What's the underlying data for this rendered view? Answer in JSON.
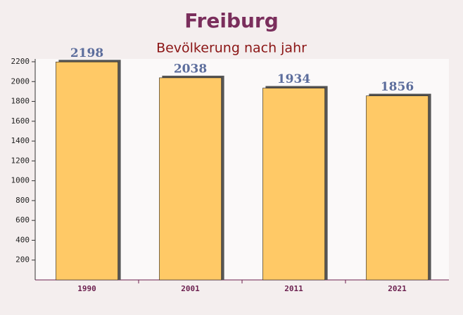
{
  "chart_data": {
    "type": "bar",
    "title": "Freiburg",
    "subtitle": "Bevölkerung nach jahr",
    "categories": [
      "1990",
      "2001",
      "2011",
      "2021"
    ],
    "values": [
      2198,
      2038,
      1934,
      1856
    ],
    "color": "#ffc966",
    "ylim": [
      0,
      2200
    ],
    "yticks": [
      200,
      400,
      600,
      800,
      1000,
      1200,
      1400,
      1600,
      1800,
      2000,
      2200
    ]
  }
}
